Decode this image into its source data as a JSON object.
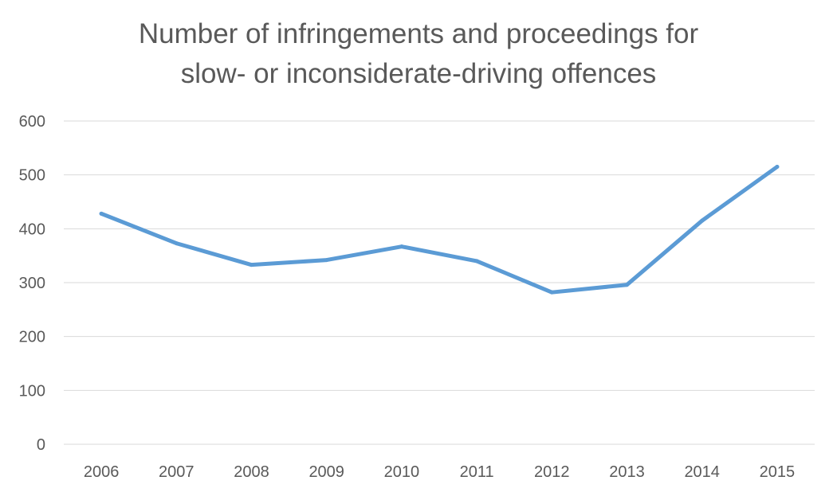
{
  "chart_data": {
    "type": "line",
    "title": [
      "Number of infringements and proceedings for",
      "slow- or inconsiderate-driving offences"
    ],
    "xlabel": "",
    "ylabel": "",
    "categories": [
      "2006",
      "2007",
      "2008",
      "2009",
      "2010",
      "2011",
      "2012",
      "2013",
      "2014",
      "2015"
    ],
    "series": [
      {
        "values": [
          428,
          373,
          333,
          342,
          367,
          340,
          282,
          296,
          415,
          515
        ],
        "color": "#5b9bd5"
      }
    ],
    "ylim": [
      0,
      600
    ],
    "yticks": [
      "0",
      "100",
      "200",
      "300",
      "400",
      "500",
      "600"
    ],
    "grid": true,
    "legend": "none"
  }
}
